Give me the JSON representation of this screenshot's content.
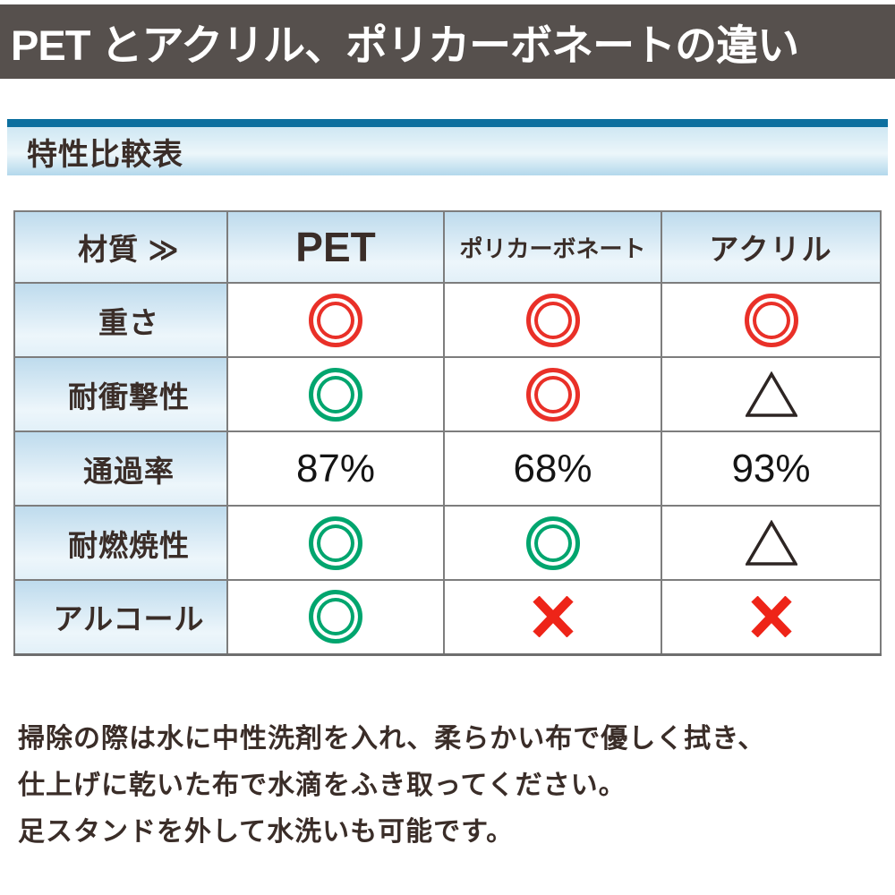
{
  "banner": {
    "title": "PET とアクリル、ポリカーボネートの違い"
  },
  "section": {
    "title": "特性比較表"
  },
  "table": {
    "corner_label": "材質 ≫",
    "columns": [
      "PET",
      "ポリカーボネート",
      "アクリル"
    ],
    "rows": [
      {
        "label": "重さ",
        "cells": [
          "circle-red",
          "circle-red",
          "circle-red"
        ]
      },
      {
        "label": "耐衝撃性",
        "cells": [
          "circle-green",
          "circle-red",
          "triangle"
        ]
      },
      {
        "label": "通過率",
        "cells": [
          "87%",
          "68%",
          "93%"
        ]
      },
      {
        "label": "耐燃焼性",
        "cells": [
          "circle-green",
          "circle-green",
          "triangle"
        ]
      },
      {
        "label": "アルコール",
        "cells": [
          "circle-green",
          "cross",
          "cross"
        ]
      }
    ]
  },
  "care_notes": {
    "lines": [
      "掃除の際は水に中性洗剤を入れ、柔らかい布で優しく拭き、",
      "仕上げに乾いた布で水滴をふき取ってください。",
      "足スタンドを外して水洗いも可能です。"
    ]
  },
  "colors": {
    "banner_bg": "#56504d",
    "accent_bar": "#0d6f9f",
    "red": "#e93028",
    "green": "#00a56e",
    "dark": "#2d2523",
    "cross_red": "#ee2418",
    "border_gray": "#7d7d7d"
  },
  "chart_data": {
    "type": "table",
    "title": "特性比較表",
    "columns": [
      "材質",
      "PET",
      "ポリカーボネート",
      "アクリル"
    ],
    "rows": [
      [
        "重さ",
        "◎",
        "◎",
        "◎"
      ],
      [
        "耐衝撃性",
        "◎",
        "◎",
        "△"
      ],
      [
        "通過率",
        "87%",
        "68%",
        "93%"
      ],
      [
        "耐燃焼性",
        "◎",
        "◎",
        "△"
      ],
      [
        "アルコール",
        "◎",
        "✕",
        "✕"
      ]
    ]
  }
}
